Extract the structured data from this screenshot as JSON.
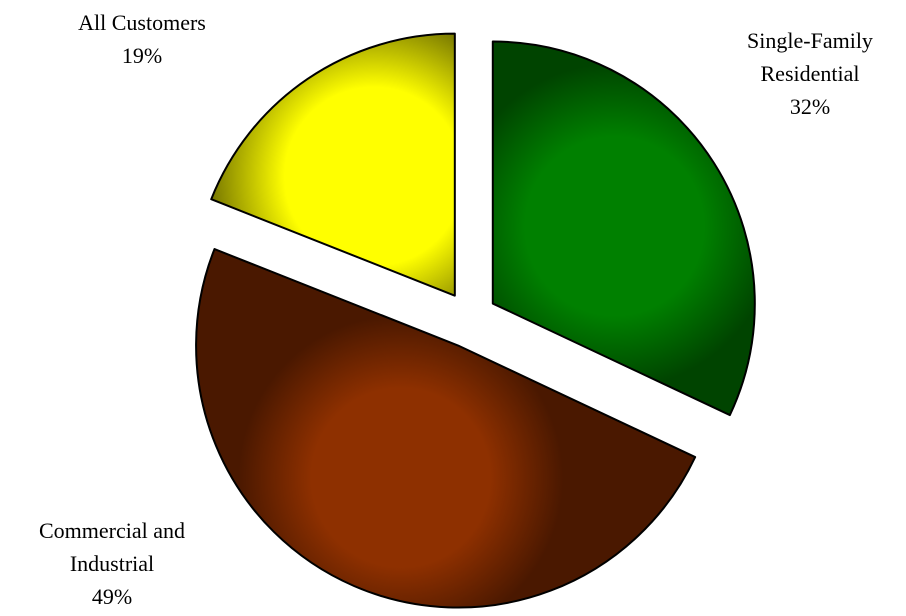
{
  "chart_data": {
    "type": "pie",
    "title": "",
    "start_angle_deg": 0,
    "direction": "clockwise",
    "exploded": true,
    "slices": [
      {
        "id": "single-family",
        "label_lines": [
          "Single-Family",
          "Residential"
        ],
        "value": 32,
        "value_label": "32%",
        "color": "#008000",
        "edge_color": "#004400"
      },
      {
        "id": "commercial",
        "label_lines": [
          "Commercial and",
          "Industrial"
        ],
        "value": 49,
        "value_label": "49%",
        "color": "#8e3000",
        "edge_color": "#4a1800"
      },
      {
        "id": "all-customers",
        "label_lines": [
          "All Customers"
        ],
        "value": 19,
        "value_label": "19%",
        "color": "#ffff00",
        "edge_color": "#7a7a00"
      }
    ]
  }
}
